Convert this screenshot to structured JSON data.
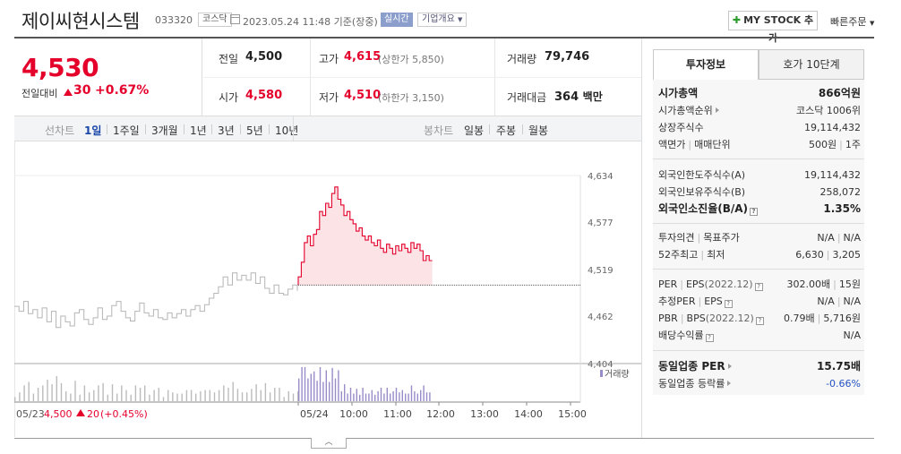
{
  "header": {
    "name": "제이씨현시스템",
    "code": "033320",
    "market": "코스닥",
    "datetime": "2023.05.24 11:48 기준(장중)",
    "realtime": "실시간",
    "overview": "기업개요",
    "mystock": "MY STOCK 추가",
    "quick_order": "빠른주문"
  },
  "price": {
    "current": "4,530",
    "change_label": "전일대비",
    "change": "30",
    "rate": "+0.67%",
    "color_up": "#e4002b"
  },
  "info": {
    "prev_label": "전일",
    "prev": "4,500",
    "high_label": "고가",
    "high": "4,615",
    "upper_limit": "(상한가 5,850)",
    "volume_label": "거래량",
    "volume": "79,746",
    "open_label": "시가",
    "open": "4,580",
    "low_label": "저가",
    "low": "4,510",
    "lower_limit": "(하한가 3,150)",
    "amount_label": "거래대금",
    "amount": "364",
    "amount_unit": "백만"
  },
  "period": {
    "label": "선차트",
    "items": [
      "1일",
      "1주일",
      "3개월",
      "1년",
      "3년",
      "5년",
      "10년"
    ],
    "active": 0,
    "candle_label": "봉차트",
    "candle_items": [
      "일봉",
      "주봉",
      "월봉"
    ]
  },
  "chart_data": {
    "type": "line",
    "y_ticks": [
      "4,634",
      "4,577",
      "4,519",
      "4,462",
      "4,404"
    ],
    "ylim": [
      4404,
      4634
    ],
    "x_labels": [
      "05/24",
      "10:00",
      "11:00",
      "12:00",
      "13:00",
      "14:00",
      "15:00"
    ],
    "volume_legend": "거래량",
    "prev_day": {
      "date": "05/23",
      "price": "4,500",
      "change": "20",
      "rate": "(+0.45%)",
      "values": [
        4474,
        4468,
        4480,
        4465,
        4470,
        4460,
        4472,
        4455,
        4468,
        4448,
        4462,
        4455,
        4450,
        4466,
        4470,
        4458,
        4452,
        4460,
        4472,
        4458,
        4462,
        4475,
        4480,
        4468,
        4460,
        4456,
        4468,
        4478,
        4466,
        4462,
        4470,
        4460,
        4458,
        4466,
        4460,
        4465,
        4470,
        4462,
        4470,
        4475,
        4468,
        4476,
        4484,
        4490,
        4498,
        4510,
        4500,
        4515,
        4506,
        4512,
        4506,
        4515,
        4502,
        4510,
        4496,
        4490,
        4500,
        4490,
        4488,
        4495,
        4500,
        4493
      ]
    },
    "today": {
      "base": 4500,
      "values": [
        4510,
        4528,
        4552,
        4560,
        4548,
        4562,
        4568,
        4590,
        4585,
        4600,
        4595,
        4612,
        4620,
        4605,
        4598,
        4585,
        4590,
        4580,
        4575,
        4566,
        4570,
        4560,
        4555,
        4560,
        4552,
        4548,
        4555,
        4545,
        4540,
        4550,
        4545,
        4538,
        4548,
        4542,
        4550,
        4545,
        4540,
        4552,
        4545,
        4550,
        4542,
        4530,
        4536,
        4530
      ]
    },
    "color_line": "#e4002b",
    "color_prev": "#b5b5b5",
    "color_volume": "#9a8cc9"
  },
  "panel": {
    "tab_info": "투자정보",
    "tab_quote": "호가 10단계",
    "rows": {
      "mcap_label": "시가총액",
      "mcap": "866억원",
      "rank_label": "시가총액순위",
      "rank": "코스닥 1006위",
      "shares_label": "상장주식수",
      "shares": "19,114,432",
      "face_label": "액면가",
      "unit_label": "매매단위",
      "face": "500원",
      "unit": "1주",
      "foreign_limit_label": "외국인한도주식수(A)",
      "foreign_limit": "19,114,432",
      "foreign_hold_label": "외국인보유주식수(B)",
      "foreign_hold": "258,072",
      "foreign_rate_label": "외국인소진율(B/A)",
      "foreign_rate": "1.35%",
      "opinion_label": "투자의견",
      "target_label": "목표주가",
      "opinion": "N/A",
      "target": "N/A",
      "w52_label": "52주최고",
      "w52_low_label": "최저",
      "w52_high": "6,630",
      "w52_low": "3,205",
      "per_label": "PER",
      "eps_label": "EPS",
      "eps_year": "(2022.12)",
      "per": "302.00배",
      "eps": "15원",
      "est_per_label": "추정PER",
      "est_eps_label": "EPS",
      "est_per": "N/A",
      "est_eps": "N/A",
      "pbr_label": "PBR",
      "bps_label": "BPS",
      "bps_year": "(2022.12)",
      "pbr": "0.79배",
      "bps": "5,716원",
      "div_label": "배당수익률",
      "div": "N/A",
      "ind_per_label": "동일업종 PER",
      "ind_per": "15.75배",
      "ind_rate_label": "동일업종 등락률",
      "ind_rate": "-0.66%"
    }
  }
}
